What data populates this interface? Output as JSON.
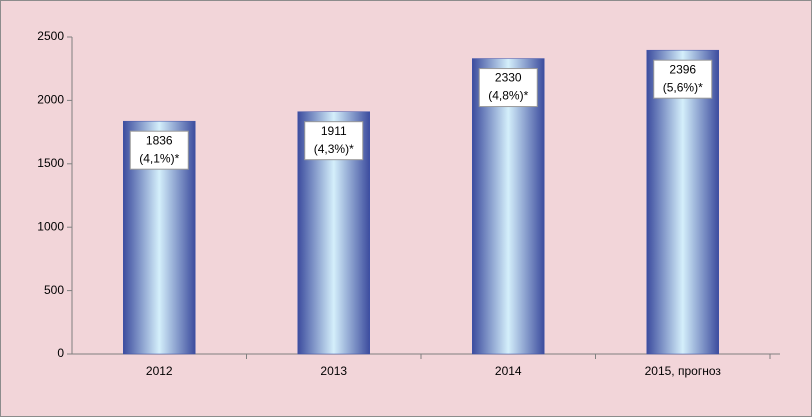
{
  "chart_data": {
    "type": "bar",
    "categories": [
      "2012",
      "2013",
      "2014",
      "2015, прогноз"
    ],
    "values": [
      1836,
      1911,
      2330,
      2396
    ],
    "annotations": [
      "(4,1%)*",
      "(4,3%)*",
      "(4,8%)*",
      "(5,6%)*"
    ],
    "color": "#3f51a8",
    "ylim": [
      0,
      2500
    ],
    "yticks": [
      0,
      500,
      1000,
      1500,
      2000,
      2500
    ],
    "grid": false
  }
}
